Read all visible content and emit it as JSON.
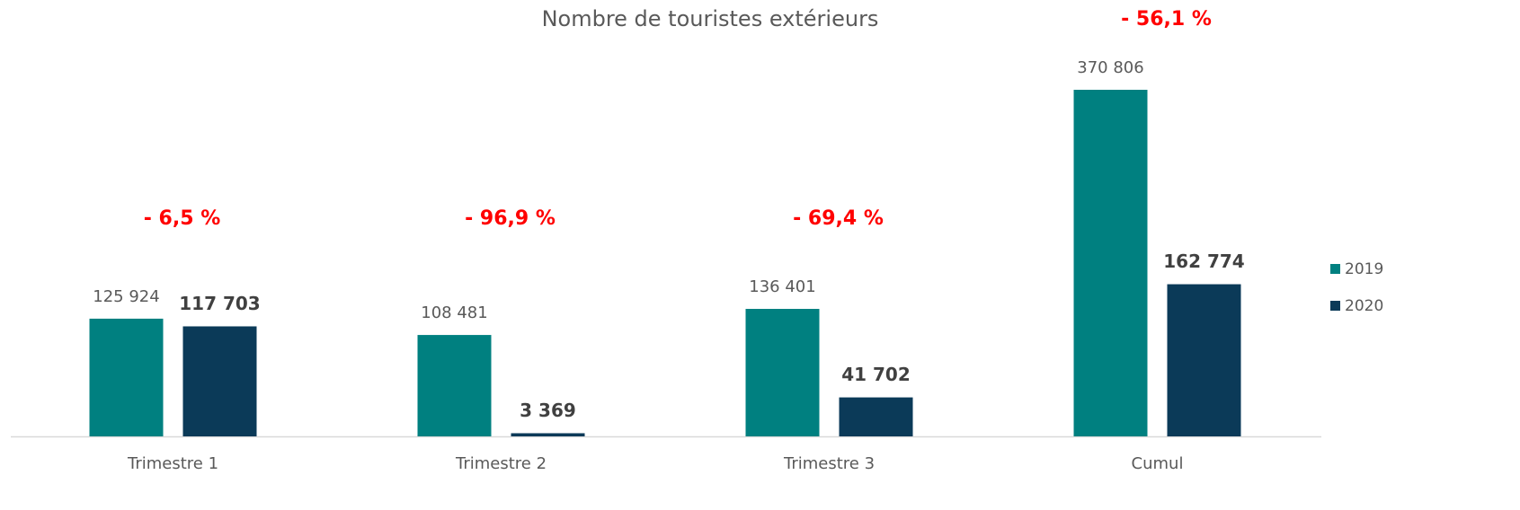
{
  "chart_data": {
    "type": "bar",
    "title": "Nombre de touristes extérieurs",
    "categories": [
      "Trimestre 1",
      "Trimestre 2",
      "Trimestre 3",
      "Cumul"
    ],
    "series": [
      {
        "name": "2019",
        "color": "#008080",
        "values": [
          125924,
          108481,
          136401,
          370806
        ],
        "value_labels": [
          "125 924",
          "108 481",
          "136 401",
          "370 806"
        ]
      },
      {
        "name": "2020",
        "color": "#0b3a58",
        "values": [
          117703,
          3369,
          41702,
          162774
        ],
        "value_labels": [
          "117 703",
          "3 369",
          "41 702",
          "162 774"
        ]
      }
    ],
    "annotations": [
      "- 6,5 %",
      "- 96,9 %",
      "- 69,4 %",
      "- 56,1 %"
    ],
    "legend": "right"
  }
}
